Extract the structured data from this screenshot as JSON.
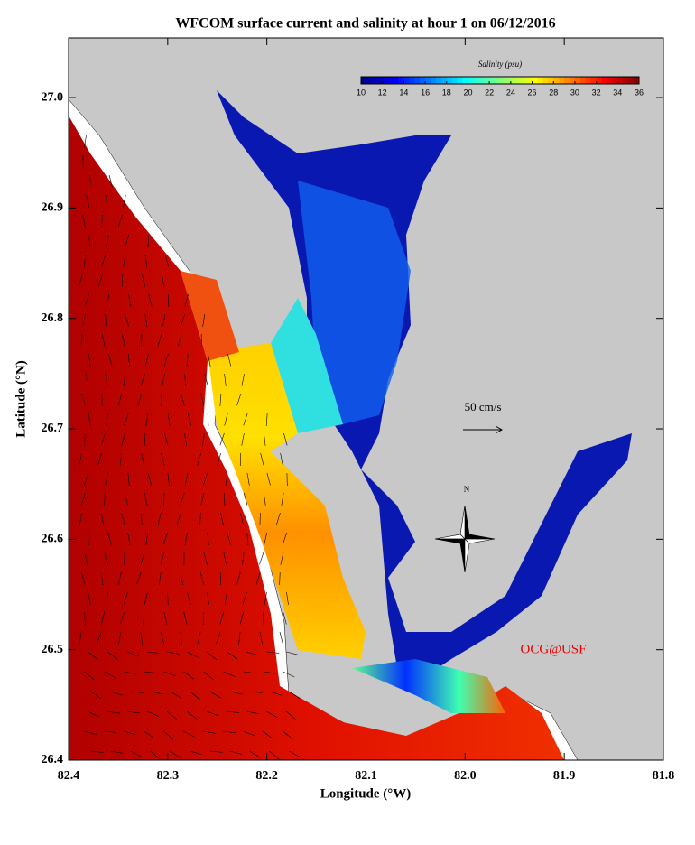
{
  "chart_data": {
    "type": "map",
    "title": "WFCOM surface current and salinity at hour 1 on 06/12/2016",
    "xlabel": "Longitude (°W)",
    "ylabel": "Latitude (°N)",
    "xlim": [
      82.4,
      81.8
    ],
    "ylim": [
      26.4,
      27.054
    ],
    "xticks": [
      82.4,
      82.3,
      82.2,
      82.1,
      {
        "value": 82,
        "label": "82.0"
      },
      81.9,
      81.8
    ],
    "yticks": [
      26.4,
      26.5,
      26.6,
      26.7,
      26.8,
      26.9,
      {
        "value": 27,
        "label": "27.0"
      }
    ],
    "colorbar": {
      "label": "Salinity (psu)",
      "lim": [
        10,
        36
      ],
      "ticks": [
        10,
        12,
        14,
        16,
        18,
        20,
        22,
        24,
        26,
        28,
        30,
        32,
        34,
        36
      ]
    },
    "annotations": [
      "50 cm/s",
      "N",
      "OCG@USF"
    ]
  }
}
